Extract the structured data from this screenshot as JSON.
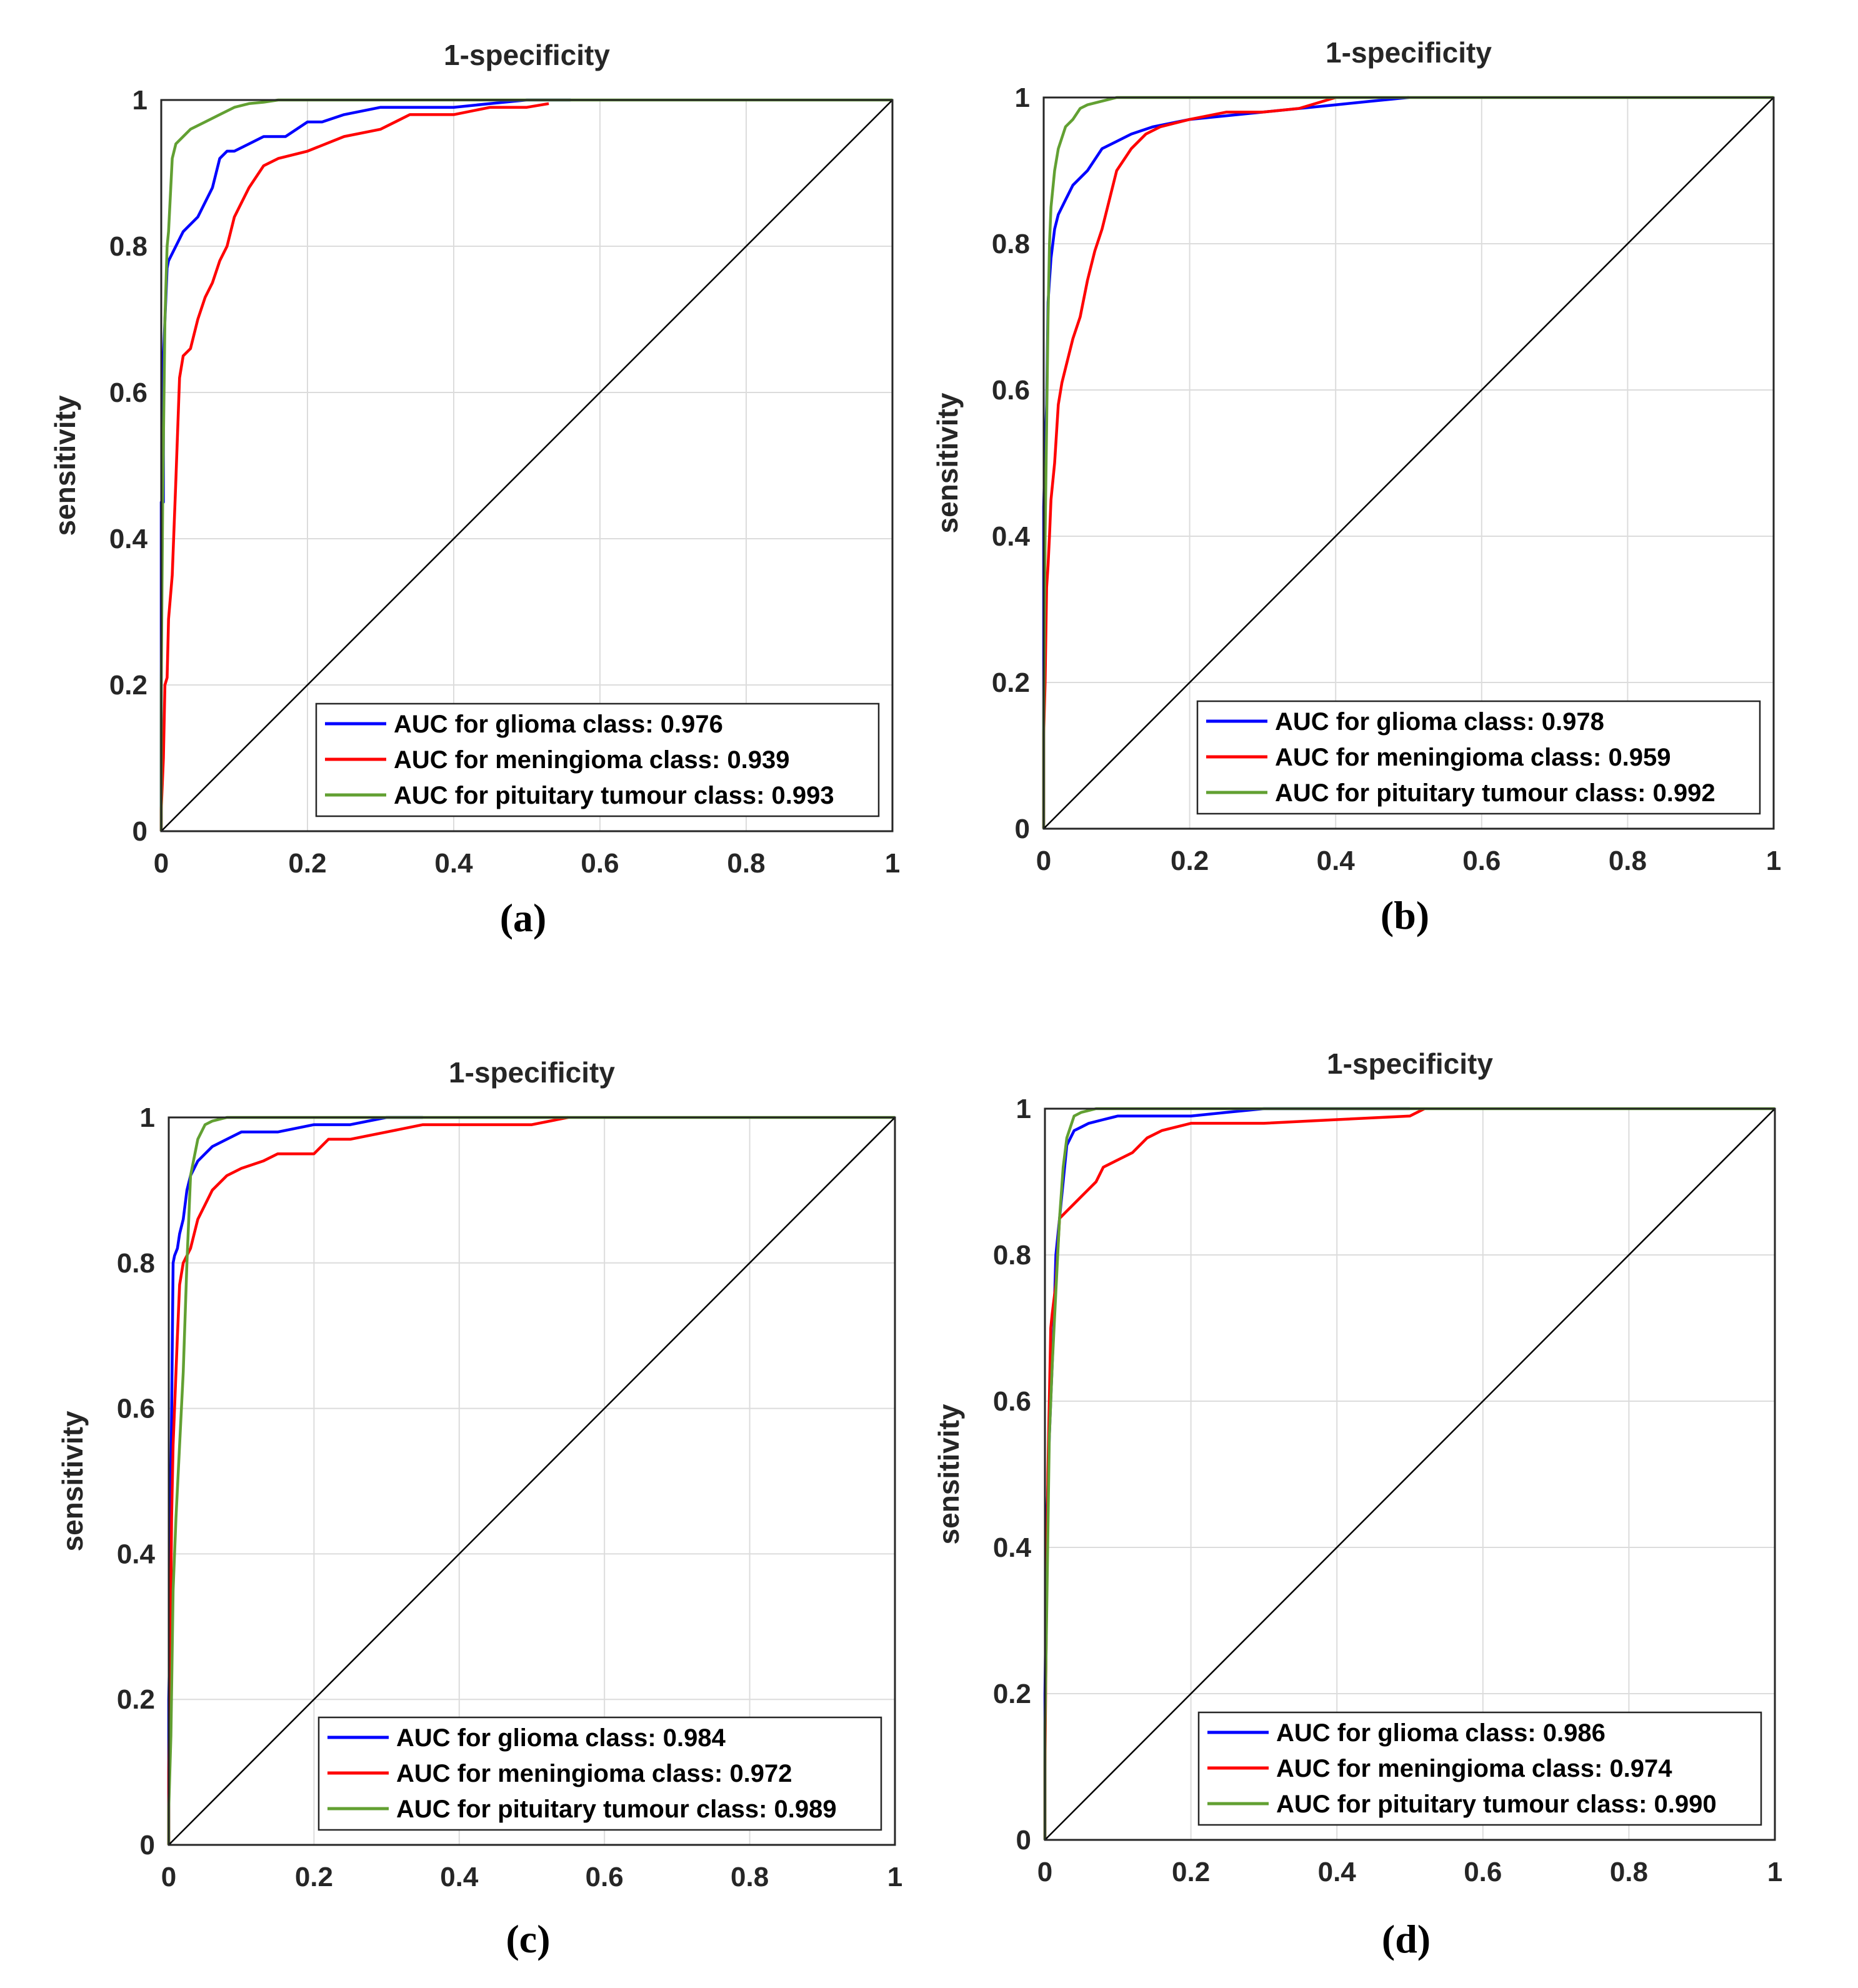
{
  "figure": {
    "colors": {
      "glioma": "#0000ff",
      "meningioma": "#ff0000",
      "pituitary": "#62a032"
    }
  },
  "chart_data": [
    {
      "type": "line",
      "panel_label": "(a)",
      "title": "1-specificity",
      "xlabel": "",
      "ylabel": "sensitivity",
      "xlim": [
        0,
        1
      ],
      "ylim": [
        0,
        1
      ],
      "xticks": [
        "0",
        "0.2",
        "0.4",
        "0.6",
        "0.8",
        "1"
      ],
      "yticks": [
        "0",
        "0.2",
        "0.4",
        "0.6",
        "0.8",
        "1"
      ],
      "grid": true,
      "legend_position": "bottom-right",
      "series": [
        {
          "name": "AUC for glioma class: 0.976",
          "color_key": "glioma",
          "x": [
            0,
            0,
            0.003,
            0.003,
            0.008,
            0.01,
            0.02,
            0.03,
            0.05,
            0.06,
            0.07,
            0.08,
            0.09,
            0.1,
            0.12,
            0.14,
            0.17,
            0.2,
            0.22,
            0.25,
            0.3,
            0.35,
            0.4,
            0.45,
            0.5,
            0.56
          ],
          "y": [
            0,
            0.45,
            0.45,
            0.65,
            0.77,
            0.78,
            0.8,
            0.82,
            0.84,
            0.86,
            0.88,
            0.92,
            0.93,
            0.93,
            0.94,
            0.95,
            0.95,
            0.97,
            0.97,
            0.98,
            0.99,
            0.99,
            0.99,
            0.995,
            1.0,
            1.0
          ]
        },
        {
          "name": "AUC for meningioma class: 0.939",
          "color_key": "meningioma",
          "x": [
            0,
            0,
            0.003,
            0.005,
            0.008,
            0.01,
            0.015,
            0.02,
            0.025,
            0.03,
            0.04,
            0.05,
            0.06,
            0.07,
            0.08,
            0.09,
            0.1,
            0.12,
            0.14,
            0.16,
            0.2,
            0.25,
            0.3,
            0.34,
            0.4,
            0.45,
            0.5,
            0.53
          ],
          "y": [
            0,
            0.03,
            0.1,
            0.2,
            0.21,
            0.29,
            0.35,
            0.48,
            0.62,
            0.65,
            0.66,
            0.7,
            0.73,
            0.75,
            0.78,
            0.8,
            0.84,
            0.88,
            0.91,
            0.92,
            0.93,
            0.95,
            0.96,
            0.98,
            0.98,
            0.99,
            0.99,
            0.995
          ]
        },
        {
          "name": "AUC for pituitary tumour class: 0.993",
          "color_key": "pituitary",
          "x": [
            0,
            0,
            0.002,
            0.005,
            0.008,
            0.01,
            0.015,
            0.02,
            0.03,
            0.04,
            0.06,
            0.08,
            0.1,
            0.12,
            0.14,
            0.16,
            0.2,
            0.3,
            0.5,
            1.0
          ],
          "y": [
            0,
            0.2,
            0.45,
            0.7,
            0.8,
            0.82,
            0.92,
            0.94,
            0.95,
            0.96,
            0.97,
            0.98,
            0.99,
            0.995,
            0.997,
            1.0,
            1.0,
            1.0,
            1.0,
            1.0
          ]
        },
        {
          "name": "",
          "color_key": "reference",
          "x": [
            0,
            1
          ],
          "y": [
            0,
            1
          ]
        }
      ]
    },
    {
      "type": "line",
      "panel_label": "(b)",
      "title": "1-specificity",
      "xlabel": "",
      "ylabel": "sensitivity",
      "xlim": [
        0,
        1
      ],
      "ylim": [
        0,
        1
      ],
      "xticks": [
        "0",
        "0.2",
        "0.4",
        "0.6",
        "0.8",
        "1"
      ],
      "yticks": [
        "0",
        "0.2",
        "0.4",
        "0.6",
        "0.8",
        "1"
      ],
      "grid": true,
      "legend_position": "bottom-right",
      "series": [
        {
          "name": "AUC for glioma class: 0.978",
          "color_key": "glioma",
          "x": [
            0,
            0,
            0.002,
            0.004,
            0.006,
            0.008,
            0.01,
            0.015,
            0.02,
            0.03,
            0.04,
            0.06,
            0.08,
            0.1,
            0.12,
            0.15,
            0.2,
            0.3,
            0.4,
            0.45,
            0.5
          ],
          "y": [
            0,
            0.44,
            0.52,
            0.58,
            0.72,
            0.75,
            0.78,
            0.82,
            0.84,
            0.86,
            0.88,
            0.9,
            0.93,
            0.94,
            0.95,
            0.96,
            0.97,
            0.98,
            0.99,
            0.995,
            1.0
          ]
        },
        {
          "name": "AUC for meningioma class: 0.959",
          "color_key": "meningioma",
          "x": [
            0,
            0,
            0.002,
            0.004,
            0.006,
            0.008,
            0.01,
            0.015,
            0.02,
            0.025,
            0.03,
            0.04,
            0.05,
            0.06,
            0.07,
            0.08,
            0.09,
            0.1,
            0.12,
            0.14,
            0.16,
            0.2,
            0.25,
            0.3,
            0.35,
            0.4
          ],
          "y": [
            0,
            0.13,
            0.2,
            0.33,
            0.36,
            0.4,
            0.45,
            0.5,
            0.58,
            0.61,
            0.63,
            0.67,
            0.7,
            0.75,
            0.79,
            0.82,
            0.86,
            0.9,
            0.93,
            0.95,
            0.96,
            0.97,
            0.98,
            0.98,
            0.985,
            1.0
          ]
        },
        {
          "name": "AUC for pituitary tumour class: 0.992",
          "color_key": "pituitary",
          "x": [
            0,
            0,
            0.002,
            0.004,
            0.006,
            0.008,
            0.01,
            0.015,
            0.02,
            0.03,
            0.04,
            0.05,
            0.06,
            0.08,
            0.1,
            0.15,
            0.3,
            0.6,
            1.0
          ],
          "y": [
            0,
            0.15,
            0.4,
            0.55,
            0.7,
            0.8,
            0.85,
            0.9,
            0.93,
            0.96,
            0.97,
            0.985,
            0.99,
            0.995,
            1.0,
            1.0,
            1.0,
            1.0,
            1.0
          ]
        },
        {
          "name": "",
          "color_key": "reference",
          "x": [
            0,
            1
          ],
          "y": [
            0,
            1
          ]
        }
      ]
    },
    {
      "type": "line",
      "panel_label": "(c)",
      "title": "1-specificity",
      "xlabel": "",
      "ylabel": "sensitivity",
      "xlim": [
        0,
        1
      ],
      "ylim": [
        0,
        1
      ],
      "xticks": [
        "0",
        "0.2",
        "0.4",
        "0.6",
        "0.8",
        "1"
      ],
      "yticks": [
        "0",
        "0.2",
        "0.4",
        "0.6",
        "0.8",
        "1"
      ],
      "grid": true,
      "legend_position": "bottom-right",
      "series": [
        {
          "name": "AUC for glioma class: 0.984",
          "color_key": "glioma",
          "x": [
            0,
            0,
            0.003,
            0.003,
            0.006,
            0.008,
            0.012,
            0.015,
            0.02,
            0.025,
            0.03,
            0.04,
            0.05,
            0.06,
            0.08,
            0.1,
            0.13,
            0.15,
            0.2,
            0.25,
            0.3,
            0.35
          ],
          "y": [
            0,
            0.2,
            0.35,
            0.5,
            0.8,
            0.81,
            0.82,
            0.84,
            0.86,
            0.9,
            0.92,
            0.94,
            0.95,
            0.96,
            0.97,
            0.98,
            0.98,
            0.98,
            0.99,
            0.99,
            1.0,
            1.0
          ]
        },
        {
          "name": "AUC for meningioma class: 0.972",
          "color_key": "meningioma",
          "x": [
            0,
            0,
            0.002,
            0.004,
            0.006,
            0.008,
            0.012,
            0.015,
            0.02,
            0.03,
            0.04,
            0.05,
            0.06,
            0.08,
            0.1,
            0.13,
            0.15,
            0.2,
            0.22,
            0.25,
            0.3,
            0.35,
            0.4,
            0.5,
            0.55
          ],
          "y": [
            0,
            0.1,
            0.25,
            0.45,
            0.55,
            0.6,
            0.7,
            0.77,
            0.8,
            0.82,
            0.86,
            0.88,
            0.9,
            0.92,
            0.93,
            0.94,
            0.95,
            0.95,
            0.97,
            0.97,
            0.98,
            0.99,
            0.99,
            0.99,
            1.0
          ]
        },
        {
          "name": "AUC for pituitary tumour class: 0.989",
          "color_key": "pituitary",
          "x": [
            0,
            0,
            0.003,
            0.006,
            0.01,
            0.015,
            0.02,
            0.025,
            0.03,
            0.04,
            0.05,
            0.06,
            0.08,
            0.1,
            0.15,
            0.3,
            0.6,
            1.0
          ],
          "y": [
            0,
            0.05,
            0.15,
            0.35,
            0.45,
            0.55,
            0.65,
            0.8,
            0.92,
            0.97,
            0.99,
            0.995,
            1.0,
            1.0,
            1.0,
            1.0,
            1.0,
            1.0
          ]
        },
        {
          "name": "",
          "color_key": "reference",
          "x": [
            0,
            1
          ],
          "y": [
            0,
            1
          ]
        }
      ]
    },
    {
      "type": "line",
      "panel_label": "(d)",
      "title": "1-specificity",
      "xlabel": "",
      "ylabel": "sensitivity",
      "xlim": [
        0,
        1
      ],
      "ylim": [
        0,
        1
      ],
      "xticks": [
        "0",
        "0.2",
        "0.4",
        "0.6",
        "0.8",
        "1"
      ],
      "yticks": [
        "0",
        "0.2",
        "0.4",
        "0.6",
        "0.8",
        "1"
      ],
      "grid": true,
      "legend_position": "bottom-right",
      "series": [
        {
          "name": "AUC for glioma class: 0.986",
          "color_key": "glioma",
          "x": [
            0,
            0,
            0.003,
            0.006,
            0.008,
            0.012,
            0.015,
            0.02,
            0.025,
            0.03,
            0.04,
            0.05,
            0.06,
            0.08,
            0.1,
            0.15,
            0.2,
            0.25,
            0.3,
            0.4,
            0.5
          ],
          "y": [
            0,
            0.2,
            0.45,
            0.55,
            0.6,
            0.7,
            0.8,
            0.85,
            0.9,
            0.95,
            0.97,
            0.975,
            0.98,
            0.985,
            0.99,
            0.99,
            0.99,
            0.995,
            1.0,
            1.0,
            1.0
          ]
        },
        {
          "name": "AUC for meningioma class: 0.974",
          "color_key": "meningioma",
          "x": [
            0,
            0,
            0.002,
            0.004,
            0.006,
            0.008,
            0.01,
            0.015,
            0.02,
            0.03,
            0.04,
            0.05,
            0.07,
            0.08,
            0.1,
            0.12,
            0.14,
            0.16,
            0.2,
            0.25,
            0.3,
            0.4,
            0.5,
            0.52
          ],
          "y": [
            0,
            0.1,
            0.3,
            0.5,
            0.6,
            0.7,
            0.72,
            0.76,
            0.85,
            0.86,
            0.87,
            0.88,
            0.9,
            0.92,
            0.93,
            0.94,
            0.96,
            0.97,
            0.98,
            0.98,
            0.98,
            0.985,
            0.99,
            1.0
          ]
        },
        {
          "name": "AUC for pituitary tumour class: 0.990",
          "color_key": "pituitary",
          "x": [
            0,
            0,
            0.003,
            0.006,
            0.01,
            0.015,
            0.02,
            0.025,
            0.03,
            0.04,
            0.05,
            0.07,
            0.1,
            0.2,
            0.5,
            1.0
          ],
          "y": [
            0,
            0.15,
            0.35,
            0.55,
            0.65,
            0.75,
            0.85,
            0.92,
            0.96,
            0.99,
            0.995,
            1.0,
            1.0,
            1.0,
            1.0,
            1.0
          ]
        },
        {
          "name": "",
          "color_key": "reference",
          "x": [
            0,
            1
          ],
          "y": [
            0,
            1
          ]
        }
      ]
    }
  ]
}
